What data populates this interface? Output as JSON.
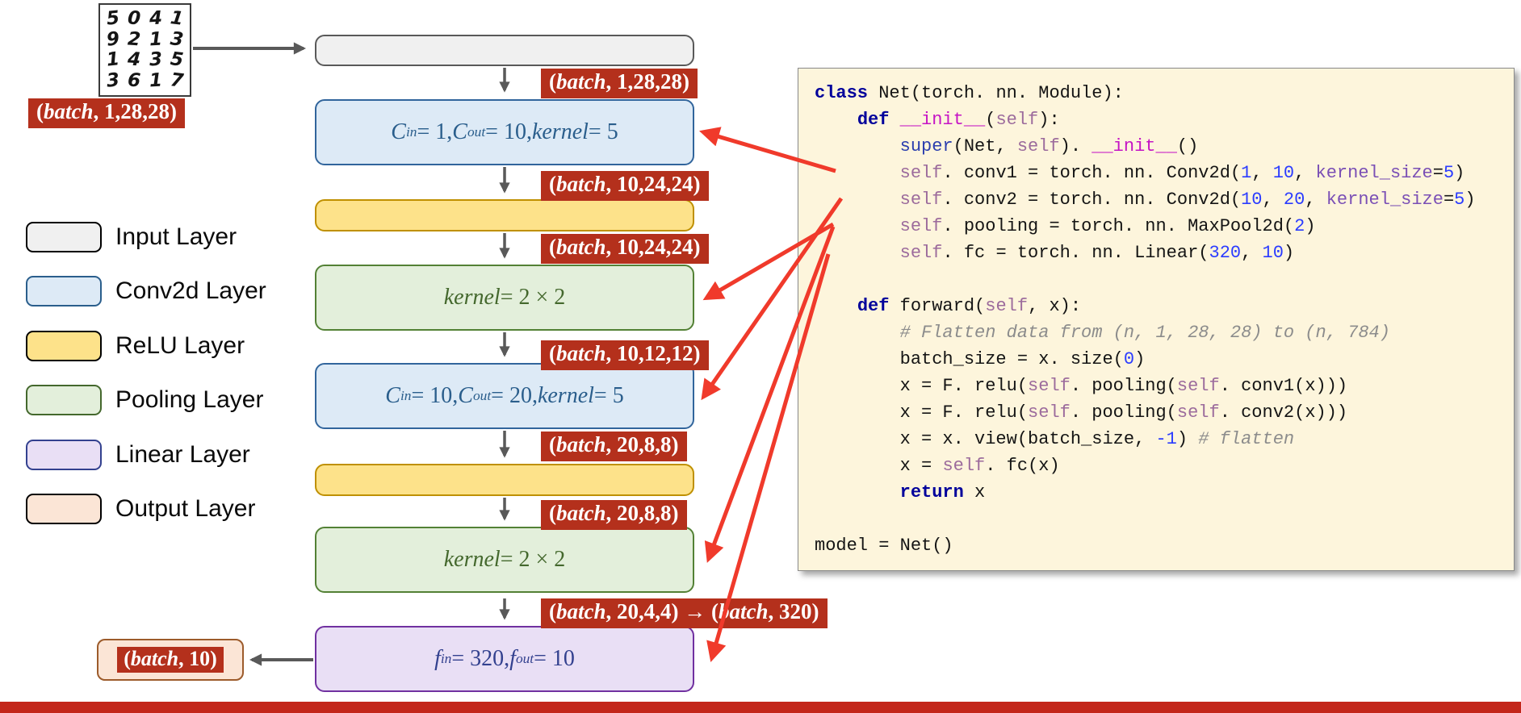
{
  "colors": {
    "badge-red": "#B4301C",
    "footer-red": "#C3261A",
    "arrow-red": "#F03A2B",
    "arrow-gray": "#595959",
    "code-bg": "#FDF5DC",
    "code-border": "#8A8A8A",
    "input-fill": "#F0F0F0",
    "input-border": "#595959",
    "conv-fill": "#DDEAF6",
    "conv-border": "#31659C",
    "conv-text": "#2A5E8C",
    "relu-fill": "#FDE28A",
    "relu-border": "#BF9000",
    "pool-fill": "#E3EFDB",
    "pool-border": "#538135",
    "pool-text": "#44682D",
    "linear-fill": "#E9DFF5",
    "linear-border": "#7030A0",
    "linear-text": "#33418F",
    "output-fill": "#FBE5D6",
    "output-border": "#9C5B2B",
    "kw": "#00009B",
    "builtin": "#2B3EAE",
    "selfc": "#9C6B9C",
    "magic": "#C514C5",
    "num": "#2B3CFF",
    "param": "#7A4FB5",
    "comment": "#8C8C8C",
    "code-text": "#141414"
  },
  "diagram": {
    "mnist": {
      "rows": [
        "5041",
        "9213",
        "1435",
        "3617"
      ]
    },
    "boxes": {
      "input": {
        "label": []
      },
      "conv1": {
        "label": [
          [
            "v",
            "C"
          ],
          [
            "s",
            "in"
          ],
          [
            "p",
            " = 1, "
          ],
          [
            "v",
            "C"
          ],
          [
            "s",
            "out"
          ],
          [
            "p",
            " = 10, "
          ],
          [
            "v",
            "kernel"
          ],
          [
            "p",
            " = 5"
          ]
        ]
      },
      "relu1": {
        "label": []
      },
      "pool1": {
        "label": [
          [
            "v",
            "kernel"
          ],
          [
            "p",
            " = 2 × 2"
          ]
        ]
      },
      "conv2": {
        "label": [
          [
            "v",
            "C"
          ],
          [
            "s",
            "in"
          ],
          [
            "p",
            " = 10, "
          ],
          [
            "v",
            "C"
          ],
          [
            "s",
            "out"
          ],
          [
            "p",
            " = 20, "
          ],
          [
            "v",
            "kernel"
          ],
          [
            "p",
            " = 5"
          ]
        ]
      },
      "relu2": {
        "label": []
      },
      "pool2": {
        "label": [
          [
            "v",
            "kernel"
          ],
          [
            "p",
            " = 2 × 2"
          ]
        ]
      },
      "linear": {
        "label": [
          [
            "v",
            "f"
          ],
          [
            "s",
            "in"
          ],
          [
            "p",
            " = 320, "
          ],
          [
            "v",
            "f"
          ],
          [
            "s",
            "out"
          ],
          [
            "p",
            " = 10"
          ]
        ]
      }
    },
    "badges": {
      "source": [
        [
          "p",
          "("
        ],
        [
          "v",
          "batch"
        ],
        [
          "p",
          ", 1,28,28)"
        ]
      ],
      "after_input": [
        [
          "p",
          "("
        ],
        [
          "v",
          "batch"
        ],
        [
          "p",
          ", 1,28,28)"
        ]
      ],
      "after_conv1": [
        [
          "p",
          "("
        ],
        [
          "v",
          "batch"
        ],
        [
          "p",
          ", 10,24,24)"
        ]
      ],
      "after_relu1": [
        [
          "p",
          "("
        ],
        [
          "v",
          "batch"
        ],
        [
          "p",
          ", 10,24,24)"
        ]
      ],
      "after_pool1": [
        [
          "p",
          "("
        ],
        [
          "v",
          "batch"
        ],
        [
          "p",
          ", 10,12,12)"
        ]
      ],
      "after_conv2": [
        [
          "p",
          "("
        ],
        [
          "v",
          "batch"
        ],
        [
          "p",
          ", 20,8,8)"
        ]
      ],
      "after_relu2": [
        [
          "p",
          "("
        ],
        [
          "v",
          "batch"
        ],
        [
          "p",
          ", 20,8,8)"
        ]
      ],
      "flatten": [
        [
          "p",
          "("
        ],
        [
          "v",
          "batch"
        ],
        [
          "p",
          ", 20,4,4) → ("
        ],
        [
          "v",
          "batch"
        ],
        [
          "p",
          ", 320)"
        ]
      ],
      "output": [
        [
          "p",
          "("
        ],
        [
          "v",
          "batch"
        ],
        [
          "p",
          ", 10)"
        ]
      ]
    }
  },
  "legend": {
    "items": [
      {
        "label": "Input Layer"
      },
      {
        "label": "Conv2d Layer"
      },
      {
        "label": "ReLU Layer"
      },
      {
        "label": "Pooling Layer"
      },
      {
        "label": "Linear Layer"
      },
      {
        "label": "Output Layer"
      }
    ]
  },
  "code": {
    "lines": [
      [
        [
          "kw",
          "class"
        ],
        [
          "p",
          " Net(torch. nn. Module):"
        ]
      ],
      [
        [
          "p",
          "    "
        ],
        [
          "kw",
          "def"
        ],
        [
          "p",
          " "
        ],
        [
          "mg",
          "__init__"
        ],
        [
          "p",
          "("
        ],
        [
          "sf",
          "self"
        ],
        [
          "p",
          "):"
        ]
      ],
      [
        [
          "p",
          "        "
        ],
        [
          "bi",
          "super"
        ],
        [
          "p",
          "(Net, "
        ],
        [
          "sf",
          "self"
        ],
        [
          "p",
          "). "
        ],
        [
          "mg",
          "__init__"
        ],
        [
          "p",
          "()"
        ]
      ],
      [
        [
          "p",
          "        "
        ],
        [
          "sf",
          "self"
        ],
        [
          "p",
          ". conv1 = torch. nn. Conv2d("
        ],
        [
          "nm",
          "1"
        ],
        [
          "p",
          ", "
        ],
        [
          "nm",
          "10"
        ],
        [
          "p",
          ", "
        ],
        [
          "pr",
          "kernel_size"
        ],
        [
          "p",
          "="
        ],
        [
          "nm",
          "5"
        ],
        [
          "p",
          ")"
        ]
      ],
      [
        [
          "p",
          "        "
        ],
        [
          "sf",
          "self"
        ],
        [
          "p",
          ". conv2 = torch. nn. Conv2d("
        ],
        [
          "nm",
          "10"
        ],
        [
          "p",
          ", "
        ],
        [
          "nm",
          "20"
        ],
        [
          "p",
          ", "
        ],
        [
          "pr",
          "kernel_size"
        ],
        [
          "p",
          "="
        ],
        [
          "nm",
          "5"
        ],
        [
          "p",
          ")"
        ]
      ],
      [
        [
          "p",
          "        "
        ],
        [
          "sf",
          "self"
        ],
        [
          "p",
          ". pooling = torch. nn. MaxPool2d("
        ],
        [
          "nm",
          "2"
        ],
        [
          "p",
          ")"
        ]
      ],
      [
        [
          "p",
          "        "
        ],
        [
          "sf",
          "self"
        ],
        [
          "p",
          ". fc = torch. nn. Linear("
        ],
        [
          "nm",
          "320"
        ],
        [
          "p",
          ", "
        ],
        [
          "nm",
          "10"
        ],
        [
          "p",
          ")"
        ]
      ],
      [],
      [
        [
          "p",
          "    "
        ],
        [
          "kw",
          "def"
        ],
        [
          "p",
          " forward("
        ],
        [
          "sf",
          "self"
        ],
        [
          "p",
          ", x):"
        ]
      ],
      [
        [
          "p",
          "        "
        ],
        [
          "cm",
          "# Flatten data from (n, 1, 28, 28) to (n, 784)"
        ]
      ],
      [
        [
          "p",
          "        batch_size = x. size("
        ],
        [
          "nm",
          "0"
        ],
        [
          "p",
          ")"
        ]
      ],
      [
        [
          "p",
          "        x = F. relu("
        ],
        [
          "sf",
          "self"
        ],
        [
          "p",
          ". pooling("
        ],
        [
          "sf",
          "self"
        ],
        [
          "p",
          ". conv1(x)))"
        ]
      ],
      [
        [
          "p",
          "        x = F. relu("
        ],
        [
          "sf",
          "self"
        ],
        [
          "p",
          ". pooling("
        ],
        [
          "sf",
          "self"
        ],
        [
          "p",
          ". conv2(x)))"
        ]
      ],
      [
        [
          "p",
          "        x = x. view(batch_size, "
        ],
        [
          "nm",
          "-1"
        ],
        [
          "p",
          ") "
        ],
        [
          "cm",
          "# flatten"
        ]
      ],
      [
        [
          "p",
          "        x = "
        ],
        [
          "sf",
          "self"
        ],
        [
          "p",
          ". fc(x)"
        ]
      ],
      [
        [
          "p",
          "        "
        ],
        [
          "kw",
          "return"
        ],
        [
          "p",
          " x"
        ]
      ],
      [],
      [
        [
          "p",
          "model = Net()"
        ]
      ]
    ]
  }
}
